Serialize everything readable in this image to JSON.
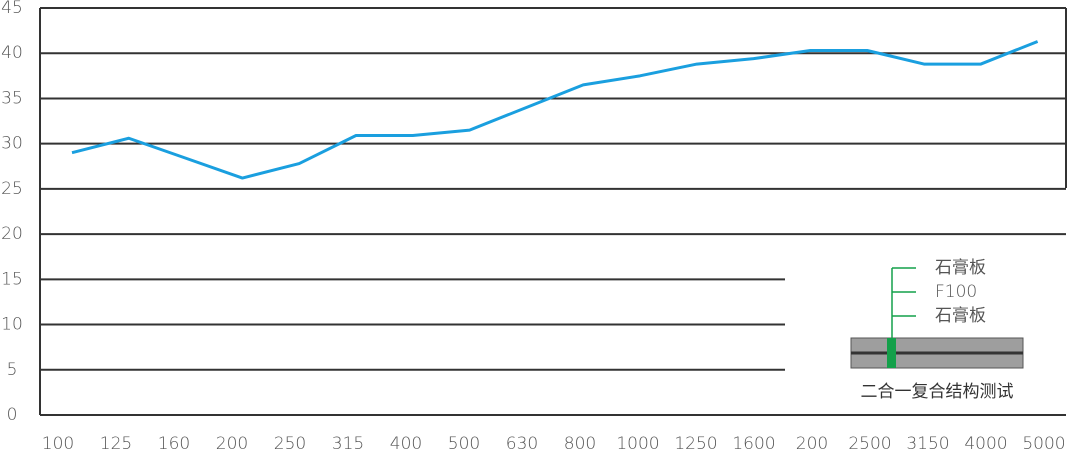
{
  "chart_data": {
    "type": "line",
    "categories": [
      "100",
      "125",
      "160",
      "200",
      "250",
      "315",
      "400",
      "500",
      "630",
      "800",
      "1000",
      "1250",
      "1600",
      "200",
      "2500",
      "3150",
      "4000",
      "5000"
    ],
    "series": [
      {
        "color": "#1a9fdf",
        "values": [
          29,
          30.6,
          28.4,
          26.2,
          27.8,
          30.9,
          30.9,
          31.5,
          34,
          36.5,
          37.5,
          38.8,
          39.4,
          40.3,
          40.3,
          38.8,
          38.8,
          41.3
        ]
      }
    ],
    "ylim": [
      0,
      45
    ],
    "yticks": [
      0,
      5,
      10,
      15,
      20,
      25,
      30,
      35,
      40,
      45
    ],
    "grid": true,
    "annotations": {
      "layers": [
        "石膏板",
        "F100",
        "石膏板"
      ],
      "caption": "二合一复合结构测试"
    }
  }
}
